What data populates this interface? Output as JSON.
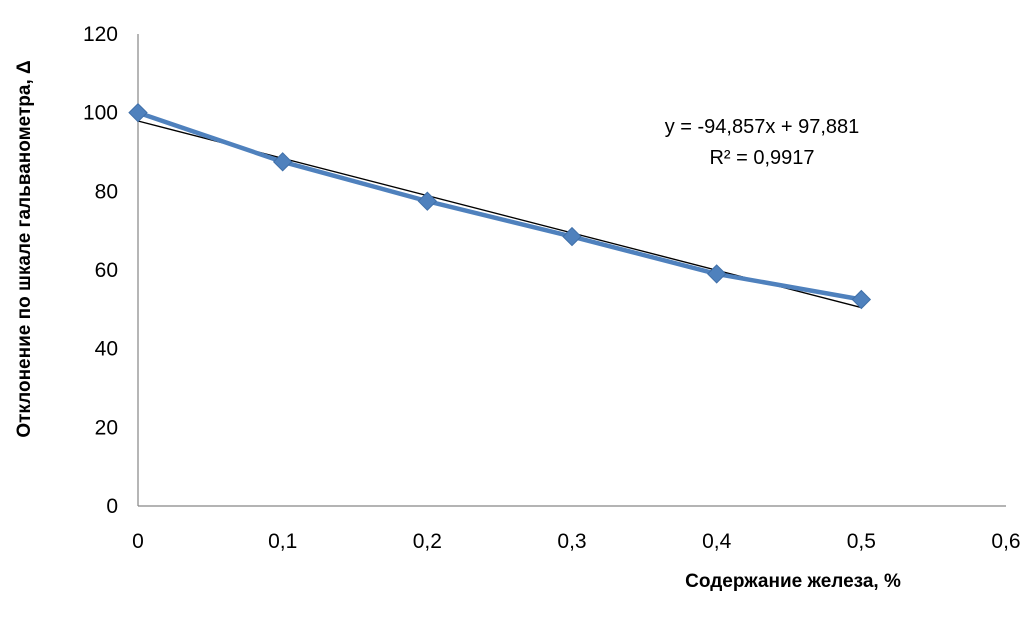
{
  "chart_data": {
    "type": "scatter",
    "xlabel": "Содержание железа, %",
    "ylabel": "Отклонение по шкале гальванометра, Δ",
    "xlim": [
      0,
      0.6
    ],
    "ylim": [
      0,
      120
    ],
    "x_ticks": [
      "0",
      "0,1",
      "0,2",
      "0,3",
      "0,4",
      "0,5",
      "0,6"
    ],
    "y_ticks": [
      "0",
      "20",
      "40",
      "60",
      "80",
      "100",
      "120"
    ],
    "grid": false,
    "series": [
      {
        "x": [
          0,
          0.1,
          0.2,
          0.3,
          0.4,
          0.5
        ],
        "y": [
          100,
          87.5,
          77.5,
          68.5,
          59,
          52.5
        ],
        "color": "#4f81bd",
        "marker": "diamond"
      }
    ],
    "trendline": {
      "slope": -94.857,
      "intercept": 97.881,
      "x_range": [
        0,
        0.5
      ],
      "color": "#000000",
      "equation": "y = -94,857x + 97,881",
      "r_squared": "R² = 0,9917"
    }
  }
}
